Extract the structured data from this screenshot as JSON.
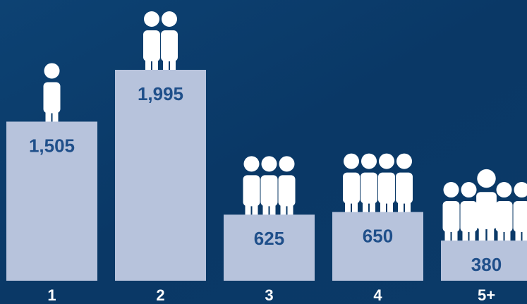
{
  "chart_data": {
    "type": "bar",
    "categories": [
      "1",
      "2",
      "3",
      "4",
      "5+"
    ],
    "values": [
      1505,
      1995,
      625,
      650,
      380
    ],
    "value_labels": [
      "1,505",
      "1,995",
      "625",
      "650",
      "380"
    ],
    "color": "#b7c3dc"
  }
}
